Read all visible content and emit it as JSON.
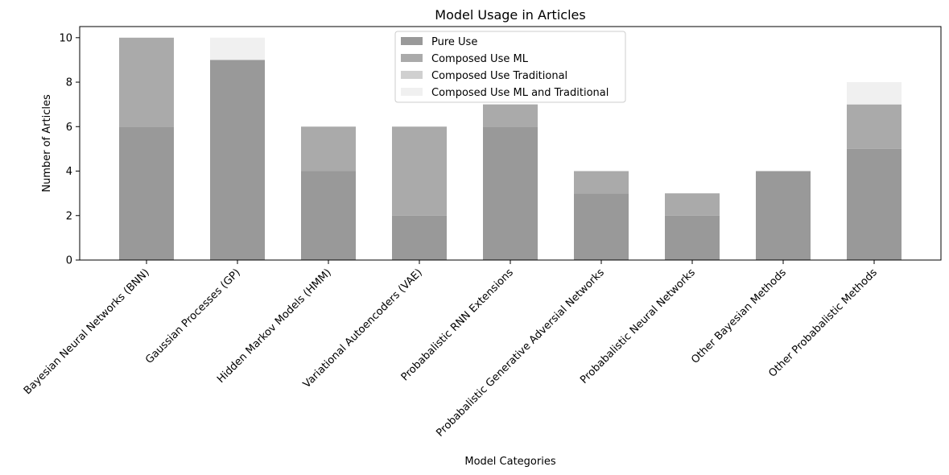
{
  "chart_data": {
    "type": "bar",
    "stacked": true,
    "title": "Model Usage in Articles",
    "xlabel": "Model Categories",
    "ylabel": "Number of Articles",
    "ylim": [
      0,
      10.5
    ],
    "yticks": [
      0,
      2,
      4,
      6,
      8,
      10
    ],
    "grid": false,
    "legend_position": "top-center",
    "categories": [
      "Bayesian Neural Networks (BNN)",
      "Gaussian Processes (GP)",
      "Hidden Markov Models (HMM)",
      "Variational Autoencoders (VAE)",
      "Probabalistic RNN Extensions",
      "Probabalistic Generative Adversial Networks",
      "Probabalistic Neural Networks",
      "Other Bayesian Methods",
      "Other Probabalistic Methods"
    ],
    "series": [
      {
        "name": "Pure Use",
        "color": "#999999",
        "values": [
          6,
          9,
          4,
          2,
          6,
          3,
          2,
          4,
          5
        ]
      },
      {
        "name": "Composed Use ML",
        "color": "#aaaaaa",
        "values": [
          4,
          0,
          2,
          4,
          1,
          1,
          1,
          0,
          2
        ]
      },
      {
        "name": "Composed Use Traditional",
        "color": "#d0d0d0",
        "values": [
          0,
          0,
          0,
          0,
          0,
          0,
          0,
          0,
          0
        ]
      },
      {
        "name": "Composed Use ML and Traditional",
        "color": "#f0f0f0",
        "values": [
          0,
          1,
          0,
          0,
          0,
          0,
          0,
          0,
          1
        ]
      }
    ]
  }
}
